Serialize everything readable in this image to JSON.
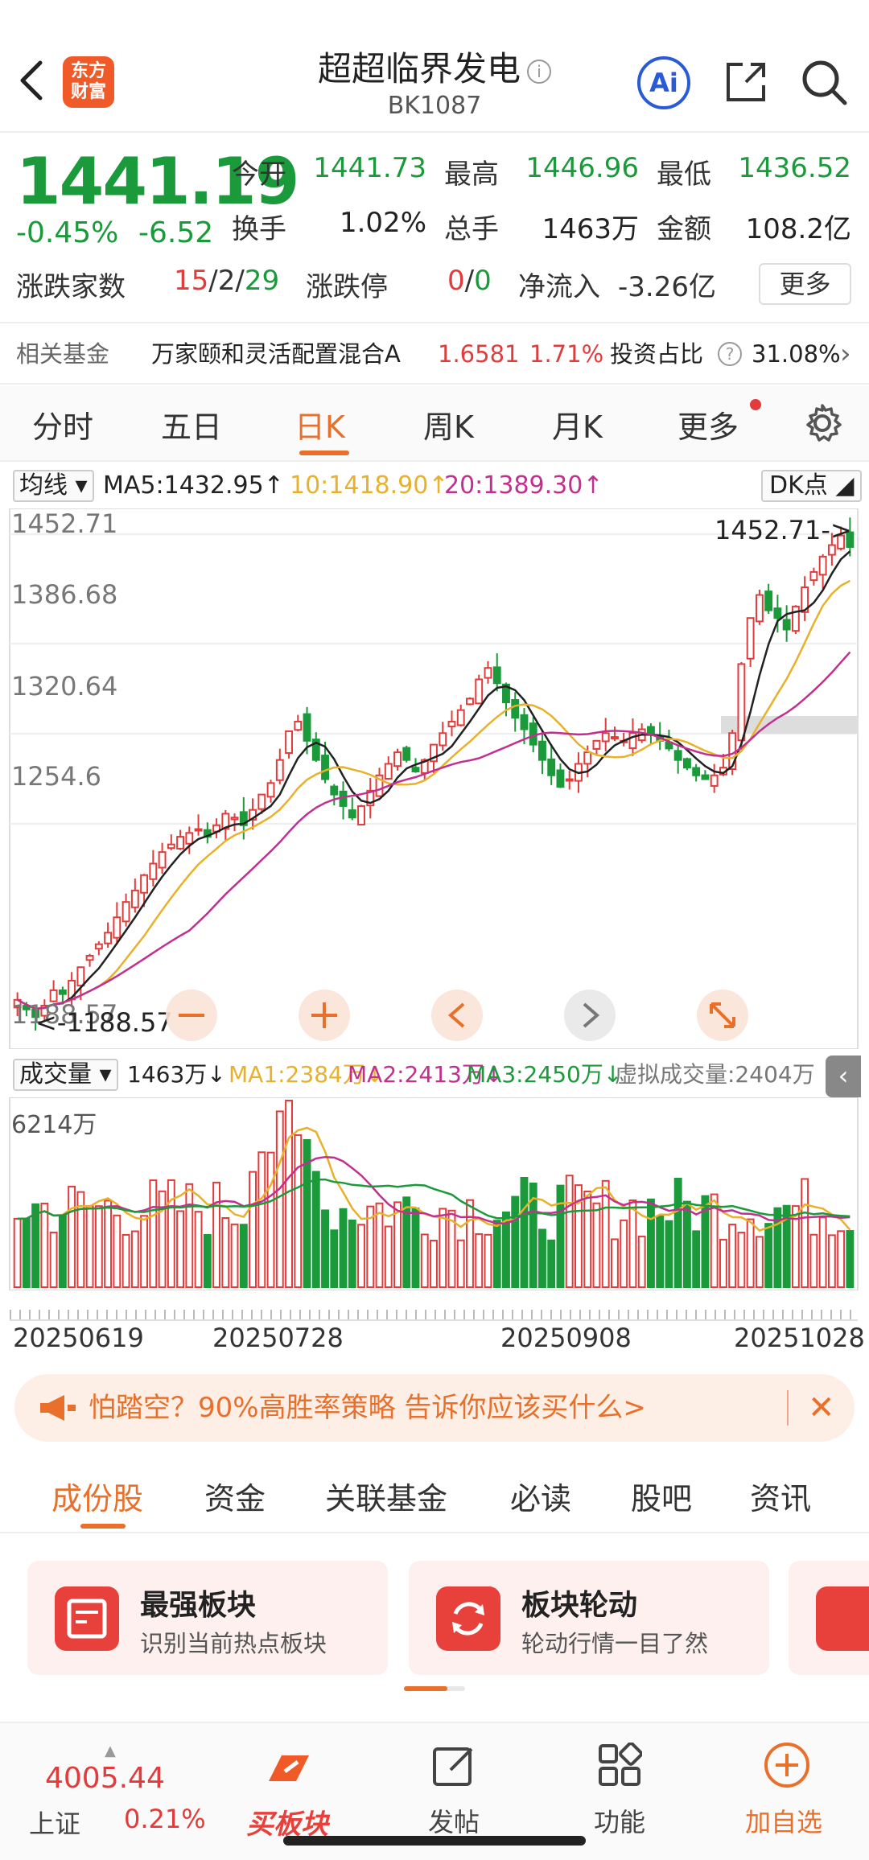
{
  "header": {
    "logo_text": "东方财富",
    "title": "超超临界发电",
    "code": "BK1087",
    "ai_label": "Ai"
  },
  "quote": {
    "price": "1441.19",
    "change_pct": "-0.45%",
    "change": "-6.52",
    "open_label": "今开",
    "open": "1441.73",
    "high_label": "最高",
    "high": "1446.96",
    "low_label": "最低",
    "low": "1436.52",
    "turnover_label": "换手",
    "turnover": "1.02%",
    "volume_label": "总手",
    "volume": "1463万",
    "amount_label": "金额",
    "amount": "108.2亿",
    "updown_label": "涨跌家数",
    "up": "15",
    "flat": "2",
    "down": "29",
    "limit_label": "涨跌停",
    "limit_up": "0",
    "limit_down": "0",
    "netflow_label": "净流入",
    "netflow": "-3.26亿",
    "more": "更多",
    "sep": "/"
  },
  "fund": {
    "label": "相关基金",
    "name": "万家颐和灵活配置混合A",
    "nav": "1.6581",
    "pct": "1.71%",
    "ratio_label": "投资占比",
    "ratio": "31.08%"
  },
  "period_tabs": [
    "分时",
    "五日",
    "日K",
    "周K",
    "月K",
    "更多"
  ],
  "ma_row": {
    "selector": "均线",
    "ma5": "MA5:1432.95↑",
    "ma10": "10:1418.90↑",
    "ma20": "20:1389.30↑",
    "dk": "DK点"
  },
  "chart_data": {
    "type": "candlestick",
    "y_ticks": [
      "1452.71",
      "1386.68",
      "1320.64",
      "1254.6",
      "1188.57"
    ],
    "ylim": [
      1188.57,
      1452.71
    ],
    "max_label": "1452.71->",
    "min_label": "<-1188.57",
    "colors": {
      "up": "#e23b3b",
      "down": "#1a9a3a",
      "ma5": "#222222",
      "ma10": "#e8b12a",
      "ma20": "#c2308f"
    },
    "closes": [
      1205,
      1200,
      1196,
      1202,
      1210,
      1208,
      1215,
      1222,
      1228,
      1234,
      1240,
      1248,
      1256,
      1262,
      1270,
      1276,
      1282,
      1286,
      1290,
      1292,
      1294,
      1290,
      1296,
      1302,
      1300,
      1296,
      1304,
      1312,
      1318,
      1330,
      1345,
      1350,
      1340,
      1330,
      1320,
      1312,
      1306,
      1300,
      1306,
      1314,
      1322,
      1328,
      1334,
      1330,
      1324,
      1330,
      1338,
      1344,
      1350,
      1356,
      1362,
      1372,
      1378,
      1370,
      1360,
      1352,
      1346,
      1338,
      1330,
      1322,
      1316,
      1320,
      1328,
      1334,
      1340,
      1344,
      1342,
      1340,
      1344,
      1346,
      1344,
      1340,
      1336,
      1330,
      1326,
      1322,
      1320,
      1322,
      1326,
      1344,
      1380,
      1404,
      1416,
      1408,
      1404,
      1398,
      1410,
      1420,
      1428,
      1436,
      1442,
      1447,
      1441
    ],
    "markers": [
      "<",
      "+",
      "<",
      ">",
      "expand"
    ]
  },
  "volume": {
    "selector": "成交量",
    "vol": "1463万↓",
    "ma1": "MA1:2384万↓",
    "ma2": "MA2:2413万↓",
    "ma3": "MA3:2450万↓",
    "virtual": "虚拟成交量:2404万",
    "max_label": "6214万",
    "dates": [
      "20250619",
      "20250728",
      "20250908",
      "20251028"
    ]
  },
  "banner": {
    "text": "怕踏空？90%高胜率策略 告诉你应该买什么>"
  },
  "section_tabs": [
    "成份股",
    "资金",
    "关联基金",
    "必读",
    "股吧",
    "资讯"
  ],
  "cards": [
    {
      "title": "最强板块",
      "sub": "识别当前热点板块"
    },
    {
      "title": "板块轮动",
      "sub": "轮动行情一目了然"
    }
  ],
  "bottom_bar": {
    "index_value": "4005.44",
    "index_name": "上证",
    "index_pct": "0.21%",
    "buy": "买板块",
    "post": "发帖",
    "func": "功能",
    "add": "加自选"
  }
}
